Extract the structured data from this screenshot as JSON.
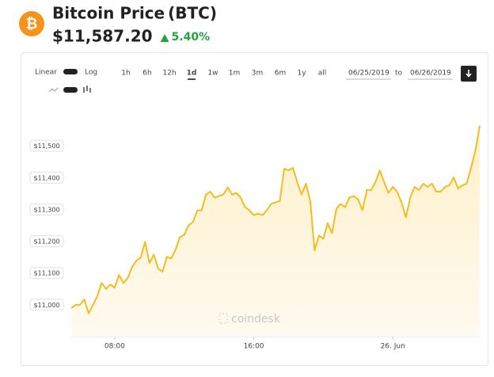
{
  "header": {
    "logo": "₿",
    "title": "Bitcoin Price",
    "symbol": "(BTC)",
    "price": "$11,587.20",
    "change": "5.40%"
  },
  "controls": {
    "scale_labels": [
      "Linear",
      "Log"
    ],
    "ranges": [
      "1h",
      "6h",
      "12h",
      "1d",
      "1w",
      "1m",
      "3m",
      "6m",
      "1y",
      "all"
    ],
    "active_range": 3,
    "from": "06/25/2019",
    "to_label": "to",
    "to": "06/26/2019"
  },
  "watermark": "coindesk",
  "chart_data": {
    "type": "line",
    "color": "#f4bd1b",
    "grid": false,
    "xlim": [
      5.5,
      29
    ],
    "xticks": [
      {
        "value": 8,
        "label": "08:00"
      },
      {
        "value": 16,
        "label": "16:00"
      },
      {
        "value": 24,
        "label": "26. Jun"
      }
    ],
    "ylim": [
      10900,
      11610
    ],
    "yticks": [
      {
        "value": 11000,
        "label": "$11,000"
      },
      {
        "value": 11100,
        "label": "$11,100"
      },
      {
        "value": 11200,
        "label": "$11,200"
      },
      {
        "value": 11300,
        "label": "$11,300"
      },
      {
        "value": 11400,
        "label": "$11,400"
      },
      {
        "value": 11500,
        "label": "$11,500"
      }
    ],
    "x": [
      5.5,
      5.75,
      6,
      6.25,
      6.5,
      6.75,
      7,
      7.25,
      7.5,
      7.75,
      8,
      8.25,
      8.5,
      8.75,
      9,
      9.25,
      9.5,
      9.75,
      10,
      10.25,
      10.5,
      10.75,
      11,
      11.25,
      11.5,
      11.75,
      12,
      12.25,
      12.5,
      12.75,
      13,
      13.25,
      13.5,
      13.75,
      14,
      14.25,
      14.5,
      14.75,
      15,
      15.25,
      15.5,
      15.75,
      16,
      16.25,
      16.5,
      16.75,
      17,
      17.25,
      17.5,
      17.75,
      18,
      18.25,
      18.5,
      18.75,
      19,
      19.25,
      19.5,
      19.75,
      20,
      20.25,
      20.5,
      20.75,
      21,
      21.25,
      21.5,
      21.75,
      22,
      22.25,
      22.5,
      22.75,
      23,
      23.25,
      23.5,
      23.75,
      24,
      24.25,
      24.5,
      24.75,
      25,
      25.25,
      25.5,
      25.75,
      26,
      26.25,
      26.5,
      26.75,
      27,
      27.25,
      27.5,
      27.75,
      28,
      28.25,
      28.5,
      28.75,
      29
    ],
    "values": [
      10990,
      11000,
      11000,
      11017,
      10973,
      11000,
      11027,
      11069,
      11050,
      11064,
      11054,
      11094,
      11069,
      11084,
      11119,
      11139,
      11149,
      11198,
      11131,
      11158,
      11114,
      11104,
      11151,
      11146,
      11173,
      11213,
      11220,
      11250,
      11260,
      11297,
      11297,
      11347,
      11356,
      11337,
      11342,
      11347,
      11369,
      11347,
      11352,
      11337,
      11307,
      11297,
      11282,
      11287,
      11282,
      11297,
      11317,
      11322,
      11327,
      11428,
      11423,
      11431,
      11386,
      11347,
      11381,
      11327,
      11171,
      11218,
      11208,
      11257,
      11225,
      11302,
      11317,
      11307,
      11337,
      11342,
      11332,
      11297,
      11361,
      11361,
      11386,
      11423,
      11386,
      11352,
      11371,
      11356,
      11322,
      11275,
      11337,
      11371,
      11361,
      11381,
      11371,
      11381,
      11356,
      11356,
      11371,
      11376,
      11401,
      11366,
      11376,
      11381,
      11431,
      11485,
      11564
    ]
  }
}
